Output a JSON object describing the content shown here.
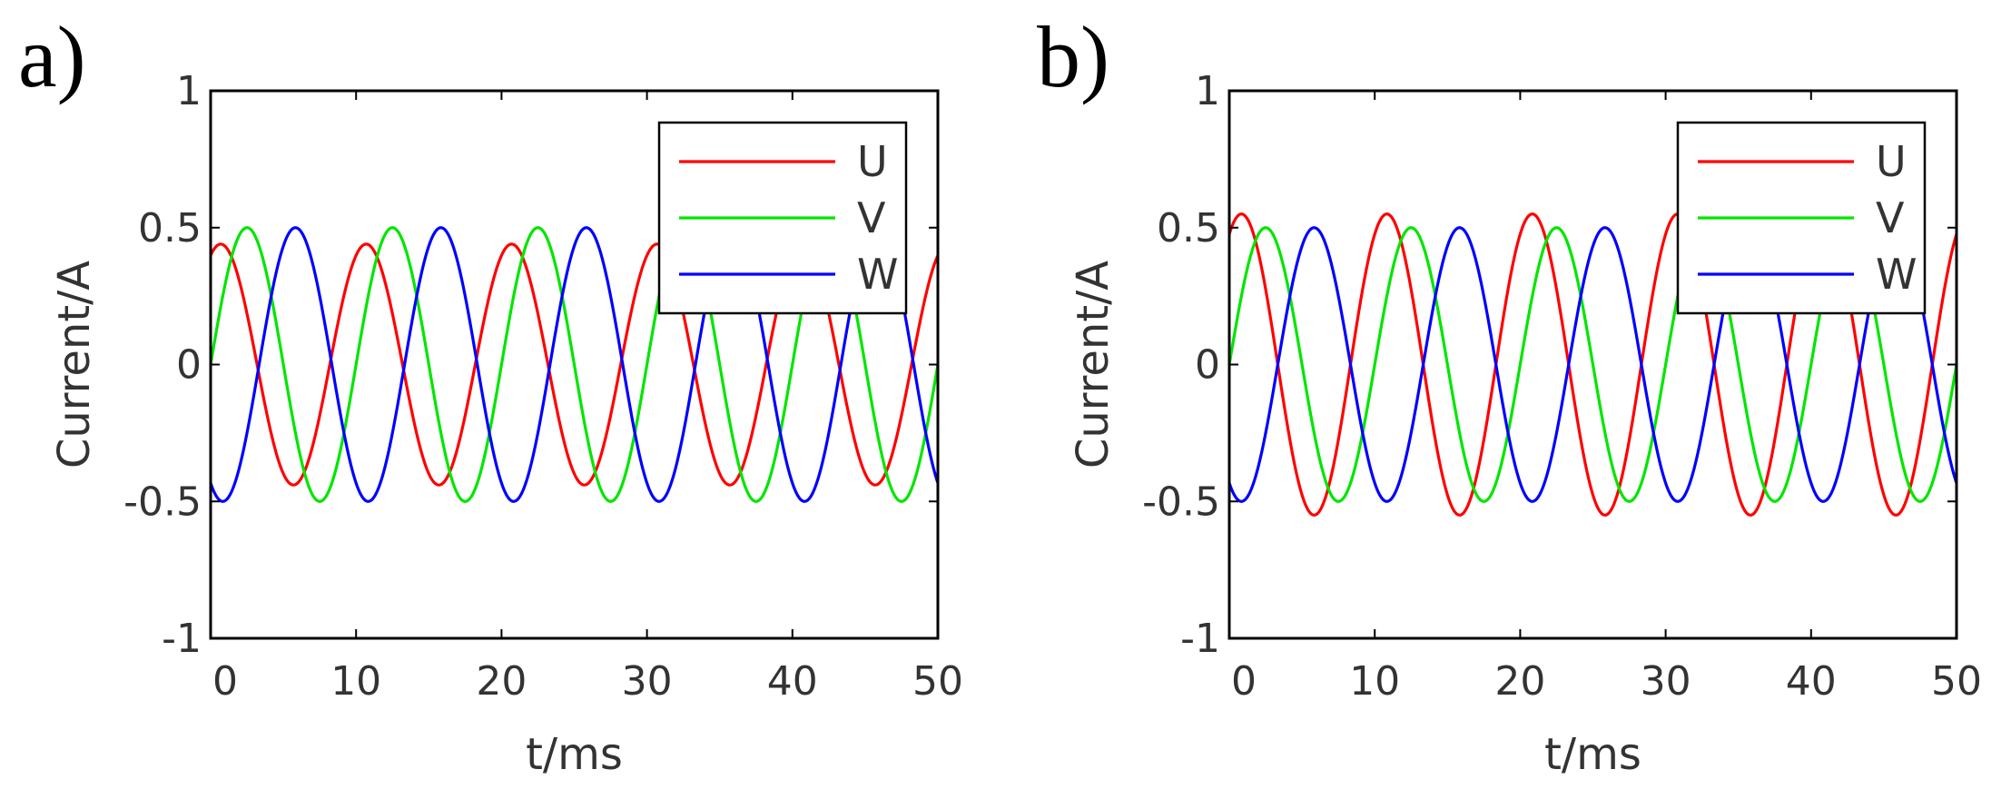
{
  "chart_data": [
    {
      "type": "line",
      "panel_label": "a)",
      "title": "",
      "xlabel": "t/ms",
      "ylabel": "Current/A",
      "xlim": [
        0,
        50
      ],
      "ylim": [
        -1,
        1
      ],
      "xticks": [
        0,
        10,
        20,
        30,
        40,
        50
      ],
      "xtick_labels": [
        "0",
        "10",
        "20",
        "30",
        "40",
        "50"
      ],
      "yticks": [
        1,
        0.5,
        0,
        -0.5,
        -1
      ],
      "ytick_labels": [
        "1",
        "0.5",
        "0",
        "-0.5",
        "-1"
      ],
      "grid": false,
      "legend_position": "top-right",
      "frequency_hz": 100,
      "series": [
        {
          "name": "U",
          "color": "#ff0000",
          "amplitude": 0.44,
          "phase_deg": 65
        },
        {
          "name": "V",
          "color": "#00e600",
          "amplitude": 0.5,
          "phase_deg": 0
        },
        {
          "name": "W",
          "color": "#0000ff",
          "amplitude": 0.5,
          "phase_deg": -120
        }
      ]
    },
    {
      "type": "line",
      "panel_label": "b)",
      "title": "",
      "xlabel": "t/ms",
      "ylabel": "Current/A",
      "xlim": [
        0,
        50
      ],
      "ylim": [
        -1,
        1
      ],
      "xticks": [
        0,
        10,
        20,
        30,
        40,
        50
      ],
      "xtick_labels": [
        "0",
        "10",
        "20",
        "30",
        "40",
        "50"
      ],
      "yticks": [
        1,
        0.5,
        0,
        -0.5,
        -1
      ],
      "ytick_labels": [
        "1",
        "0.5",
        "0",
        "-0.5",
        "-1"
      ],
      "grid": false,
      "legend_position": "top-right",
      "frequency_hz": 100,
      "series": [
        {
          "name": "U",
          "color": "#ff0000",
          "amplitude": 0.55,
          "phase_deg": 60
        },
        {
          "name": "V",
          "color": "#00e600",
          "amplitude": 0.5,
          "phase_deg": 0
        },
        {
          "name": "W",
          "color": "#0000ff",
          "amplitude": 0.5,
          "phase_deg": -120
        }
      ]
    }
  ]
}
